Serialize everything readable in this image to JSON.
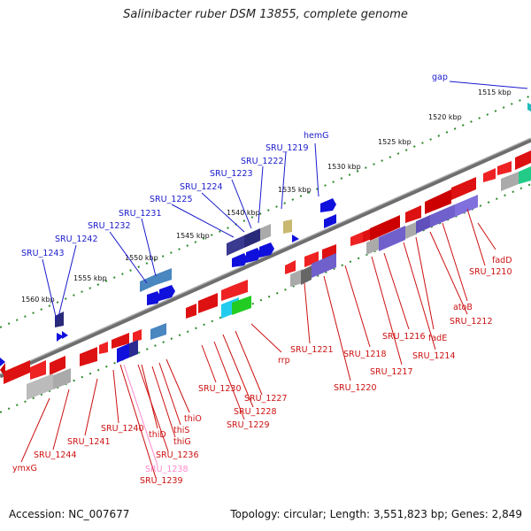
{
  "title": "Salinibacter ruber DSM 13855, complete genome",
  "footer": {
    "accession": "Accession: NC_007677",
    "topology": "Topology: circular;",
    "length": "Length: 3,551,823 bp;",
    "genes": "Genes: 2,849"
  },
  "colors": {
    "top_label": "#1a1acc",
    "bottom_label": "#cc1111",
    "pink_label": "#ff88cc",
    "tick_dot": "#2a8a2a",
    "backbone": "#707070"
  },
  "scale_labels": [
    "1515 kbp",
    "1520 kbp",
    "1525 kbp",
    "1530 kbp",
    "1535 kbp",
    "1540 kbp",
    "1545 kbp",
    "1550 kbp",
    "1555 kbp",
    "1560 kbp"
  ],
  "top_gene_labels": [
    "gap",
    "hemG",
    "SRU_1219",
    "SRU_1222",
    "SRU_1223",
    "SRU_1224",
    "SRU_1225",
    "SRU_1231",
    "SRU_1232",
    "SRU_1242",
    "SRU_1243"
  ],
  "bottom_gene_labels": [
    "fadD",
    "SRU_1210",
    "atoB",
    "SRU_1212",
    "fadE",
    "SRU_1214",
    "SRU_1216",
    "SRU_1217",
    "SRU_1218",
    "SRU_1220",
    "SRU_1221",
    "rrp",
    "SRU_1227",
    "SRU_1228",
    "SRU_1229",
    "SRU_1230",
    "thiO",
    "thiS",
    "thiG",
    "thiD",
    "SRU_1236",
    "SRU_1238",
    "SRU_1239",
    "SRU_1240",
    "SRU_1241",
    "SRU_1244",
    "ymxG"
  ]
}
